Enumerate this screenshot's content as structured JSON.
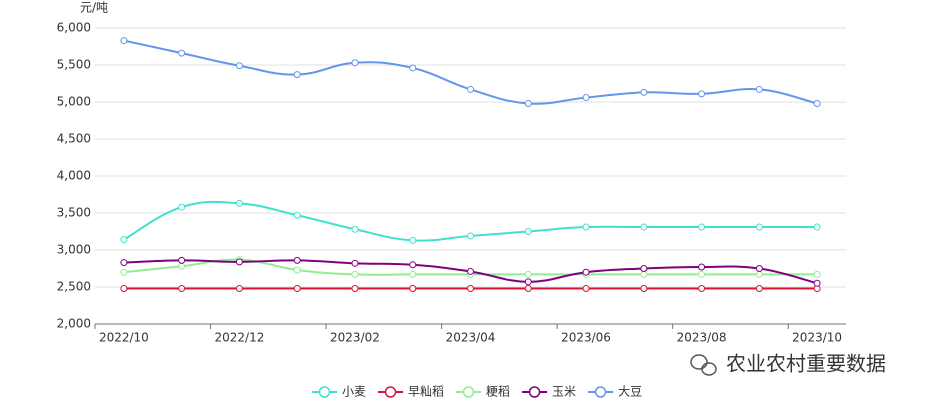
{
  "chart_data": {
    "type": "line",
    "y_unit": "元/吨",
    "categories": [
      "2022/10",
      null,
      "2022/12",
      null,
      "2023/02",
      null,
      "2023/04",
      null,
      "2023/06",
      null,
      "2023/08",
      null,
      "2023/10"
    ],
    "series": [
      {
        "name": "小麦",
        "color": "#40e0d0",
        "values": [
          3140,
          3580,
          3630,
          3470,
          3280,
          3130,
          3190,
          3250,
          3310,
          3310,
          3310,
          3310,
          3310
        ]
      },
      {
        "name": "早籼稻",
        "color": "#dc143c",
        "values": [
          2480,
          2480,
          2480,
          2480,
          2480,
          2480,
          2480,
          2480,
          2480,
          2480,
          2480,
          2480,
          2480
        ]
      },
      {
        "name": "粳稻",
        "color": "#90ee90",
        "values": [
          2700,
          2780,
          2870,
          2730,
          2670,
          2670,
          2670,
          2670,
          2670,
          2670,
          2670,
          2670,
          2670
        ]
      },
      {
        "name": "玉米",
        "color": "#800080",
        "values": [
          2830,
          2860,
          2840,
          2860,
          2820,
          2800,
          2710,
          2570,
          2700,
          2750,
          2770,
          2750,
          2550
        ]
      },
      {
        "name": "大豆",
        "color": "#6495ed",
        "values": [
          5830,
          5660,
          5490,
          5370,
          5530,
          5460,
          5170,
          4980,
          5060,
          5130,
          5110,
          5170,
          4980
        ]
      }
    ],
    "ylim": [
      2000,
      6000
    ],
    "yticks": [
      {
        "value": 2000,
        "label": "2,000"
      },
      {
        "value": 2500,
        "label": "2,500"
      },
      {
        "value": 3000,
        "label": "3,000"
      },
      {
        "value": 3500,
        "label": "3,500"
      },
      {
        "value": 4000,
        "label": "4,000"
      },
      {
        "value": 4500,
        "label": "4,500"
      },
      {
        "value": 5000,
        "label": "5,000"
      },
      {
        "value": 5500,
        "label": "5,500"
      },
      {
        "value": 6000,
        "label": "6,000"
      }
    ],
    "grid": true
  },
  "watermark": "农业农村重要数据"
}
